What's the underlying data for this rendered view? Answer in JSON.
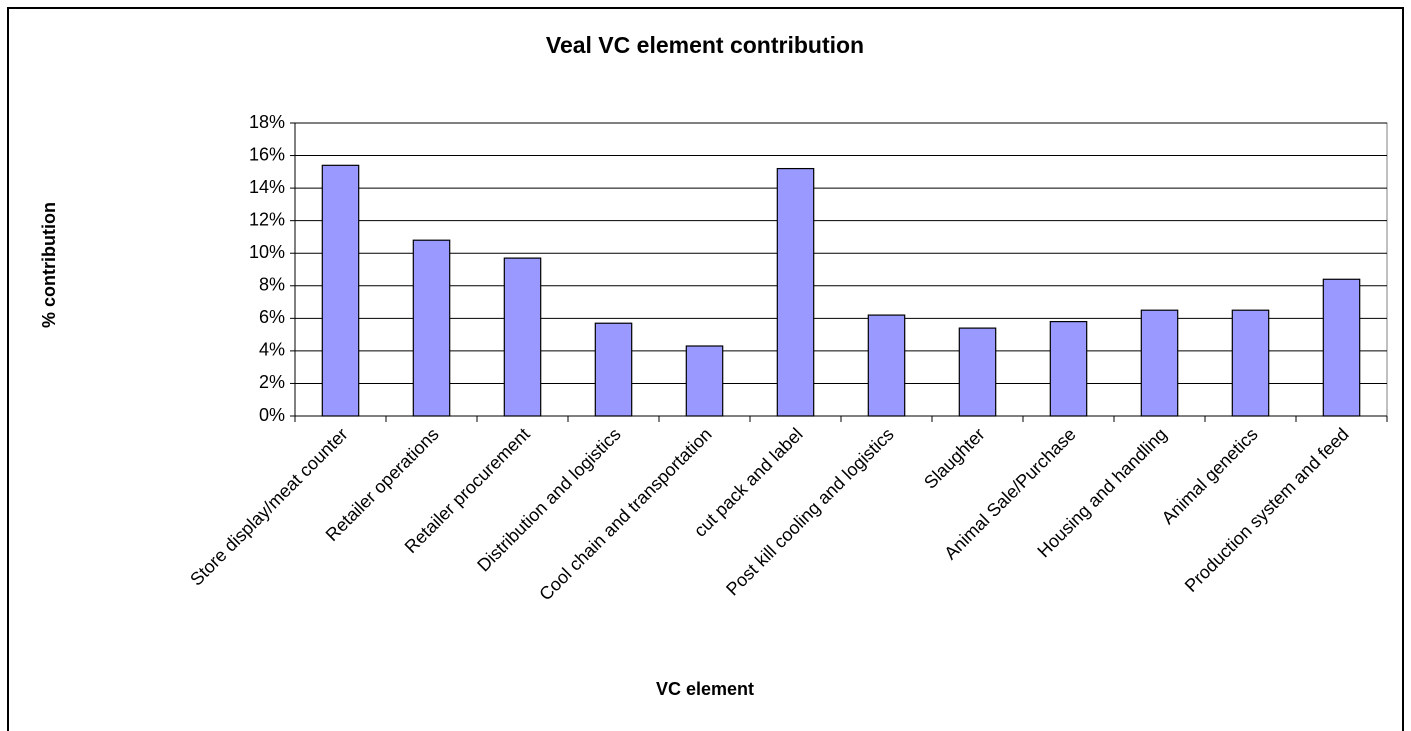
{
  "chart_data": {
    "type": "bar",
    "title": "Veal VC element contribution",
    "x_label": "VC element",
    "y_label": "% contribution",
    "categories": [
      "Store display/meat counter",
      "Retailer  operations",
      "Retailer procurement",
      "Distribution and logistics",
      "Cool chain and transportation",
      "cut pack and label",
      "Post kill cooling and logistics",
      "Slaughter",
      "Animal Sale/Purchase",
      "Housing and handling",
      "Animal genetics",
      "Production system and feed"
    ],
    "values": [
      15.4,
      10.8,
      9.7,
      5.7,
      4.3,
      15.2,
      6.2,
      5.4,
      5.8,
      6.5,
      6.5,
      8.4
    ],
    "color": "#9999ff",
    "ylim": [
      0,
      18
    ],
    "yticks": [
      {
        "value": 0,
        "label": "0%"
      },
      {
        "value": 2,
        "label": "2%"
      },
      {
        "value": 4,
        "label": "4%"
      },
      {
        "value": 6,
        "label": "6%"
      },
      {
        "value": 8,
        "label": "8%"
      },
      {
        "value": 10,
        "label": "10%"
      },
      {
        "value": 12,
        "label": "12%"
      },
      {
        "value": 14,
        "label": "14%"
      },
      {
        "value": 16,
        "label": "16%"
      },
      {
        "value": 18,
        "label": "18%"
      }
    ],
    "grid": true
  }
}
